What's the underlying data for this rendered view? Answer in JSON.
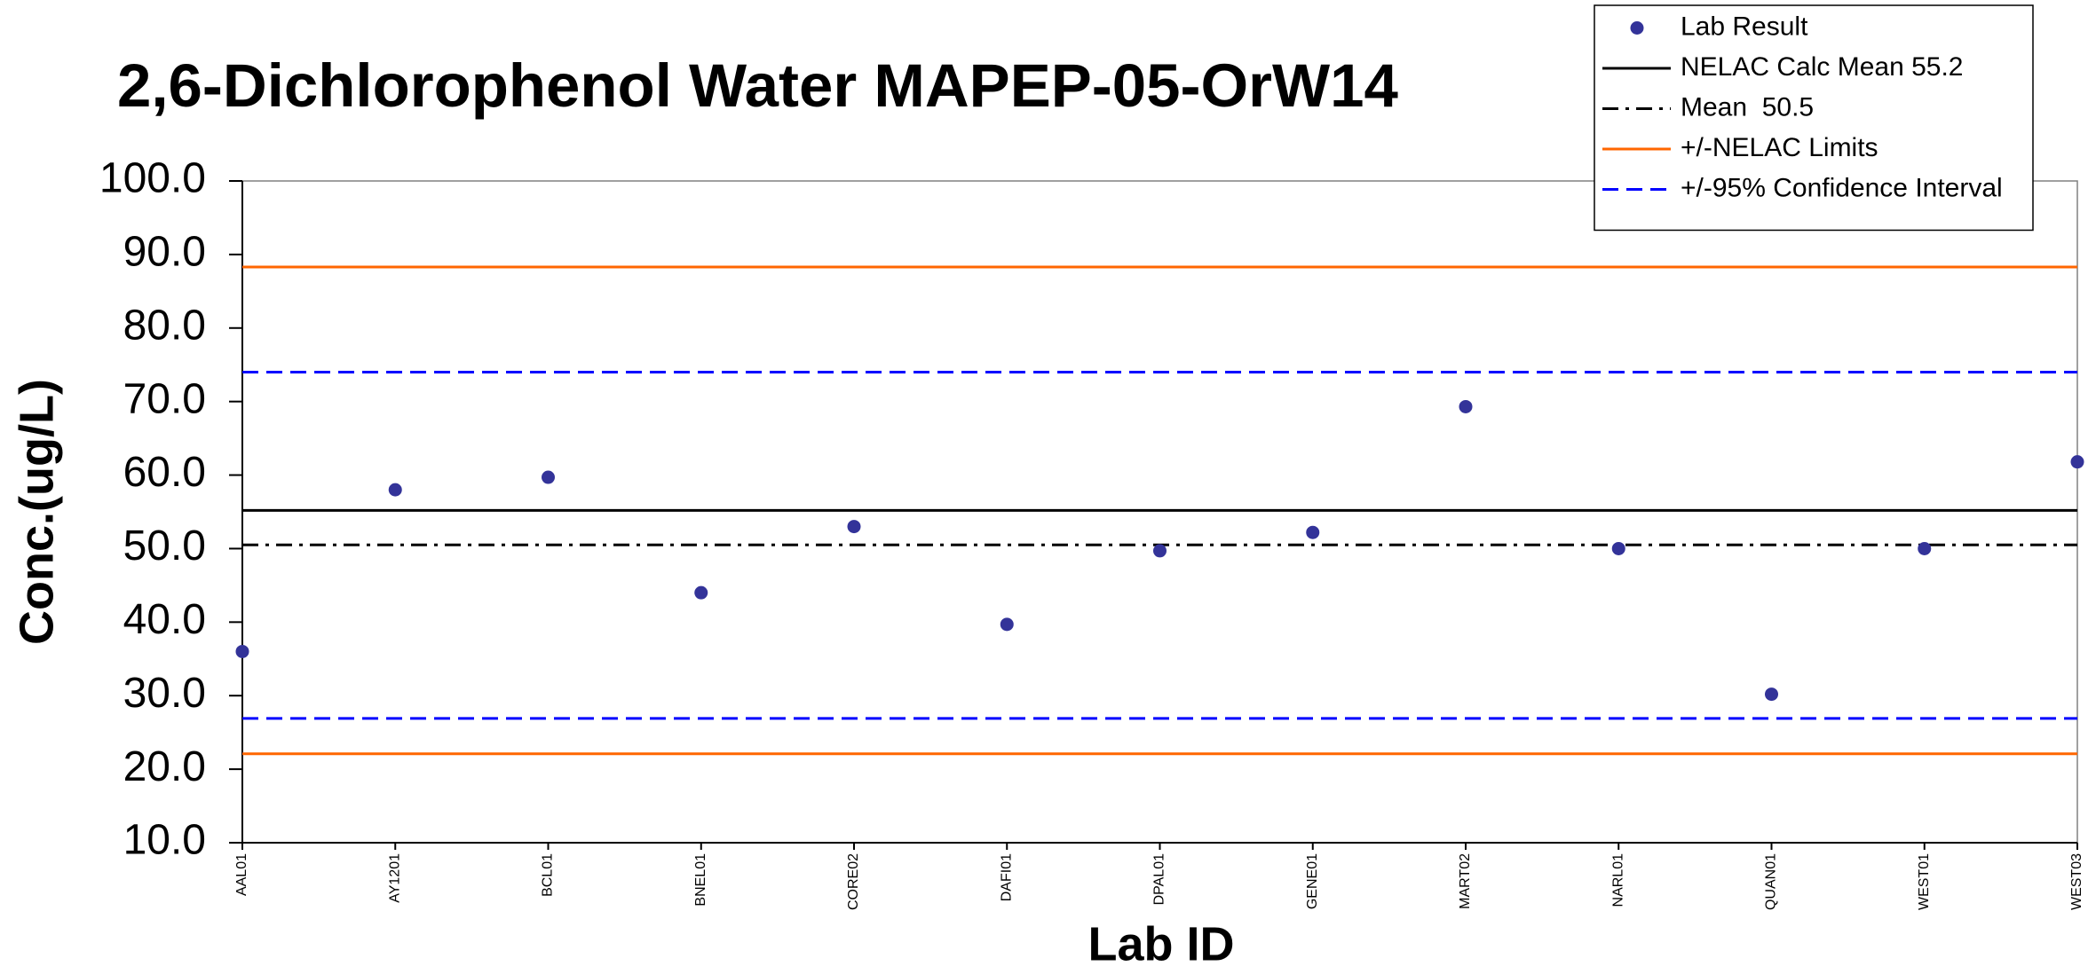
{
  "chart_data": {
    "type": "scatter",
    "title": "2,6-Dichlorophenol Water MAPEP-05-OrW14",
    "x_label": "Lab ID",
    "y_label": "Conc.(ug/L)",
    "categories": [
      "AAL01",
      "AY1201",
      "BCL01",
      "BNEL01",
      "CORE02",
      "DAFI01",
      "DPAL01",
      "GENE01",
      "MART02",
      "NARL01",
      "QUAN01",
      "WEST01",
      "WEST03"
    ],
    "series": [
      {
        "name": "Lab Result",
        "color": "#333399",
        "values": [
          36.0,
          58.0,
          59.7,
          44.0,
          53.0,
          39.7,
          49.7,
          52.2,
          69.3,
          50.0,
          30.2,
          50.0,
          61.8
        ]
      }
    ],
    "reference_lines": [
      {
        "name": "NELAC Calc Mean 55.2",
        "color": "#000000",
        "style": "solid",
        "values": [
          55.2
        ]
      },
      {
        "name": "Mean  50.5",
        "color": "#000000",
        "style": "dashdot",
        "values": [
          50.5
        ]
      },
      {
        "name": "+/-NELAC Limits",
        "color": "#ff6600",
        "style": "solid",
        "values": [
          88.3,
          22.1
        ]
      },
      {
        "name": "+/-95% Confidence Interval",
        "color": "#0000ff",
        "style": "dashed",
        "values": [
          74.0,
          26.9
        ]
      }
    ],
    "ylim": [
      10,
      100
    ],
    "yticks": [
      {
        "value": 10,
        "label": "10.0"
      },
      {
        "value": 20,
        "label": "20.0"
      },
      {
        "value": 30,
        "label": "30.0"
      },
      {
        "value": 40,
        "label": "40.0"
      },
      {
        "value": 50,
        "label": "50.0"
      },
      {
        "value": 60,
        "label": "60.0"
      },
      {
        "value": 70,
        "label": "70.0"
      },
      {
        "value": 80,
        "label": "80.0"
      },
      {
        "value": 90,
        "label": "90.0"
      },
      {
        "value": 100,
        "label": "100.0"
      }
    ],
    "grid": false,
    "legend": "upper right"
  }
}
